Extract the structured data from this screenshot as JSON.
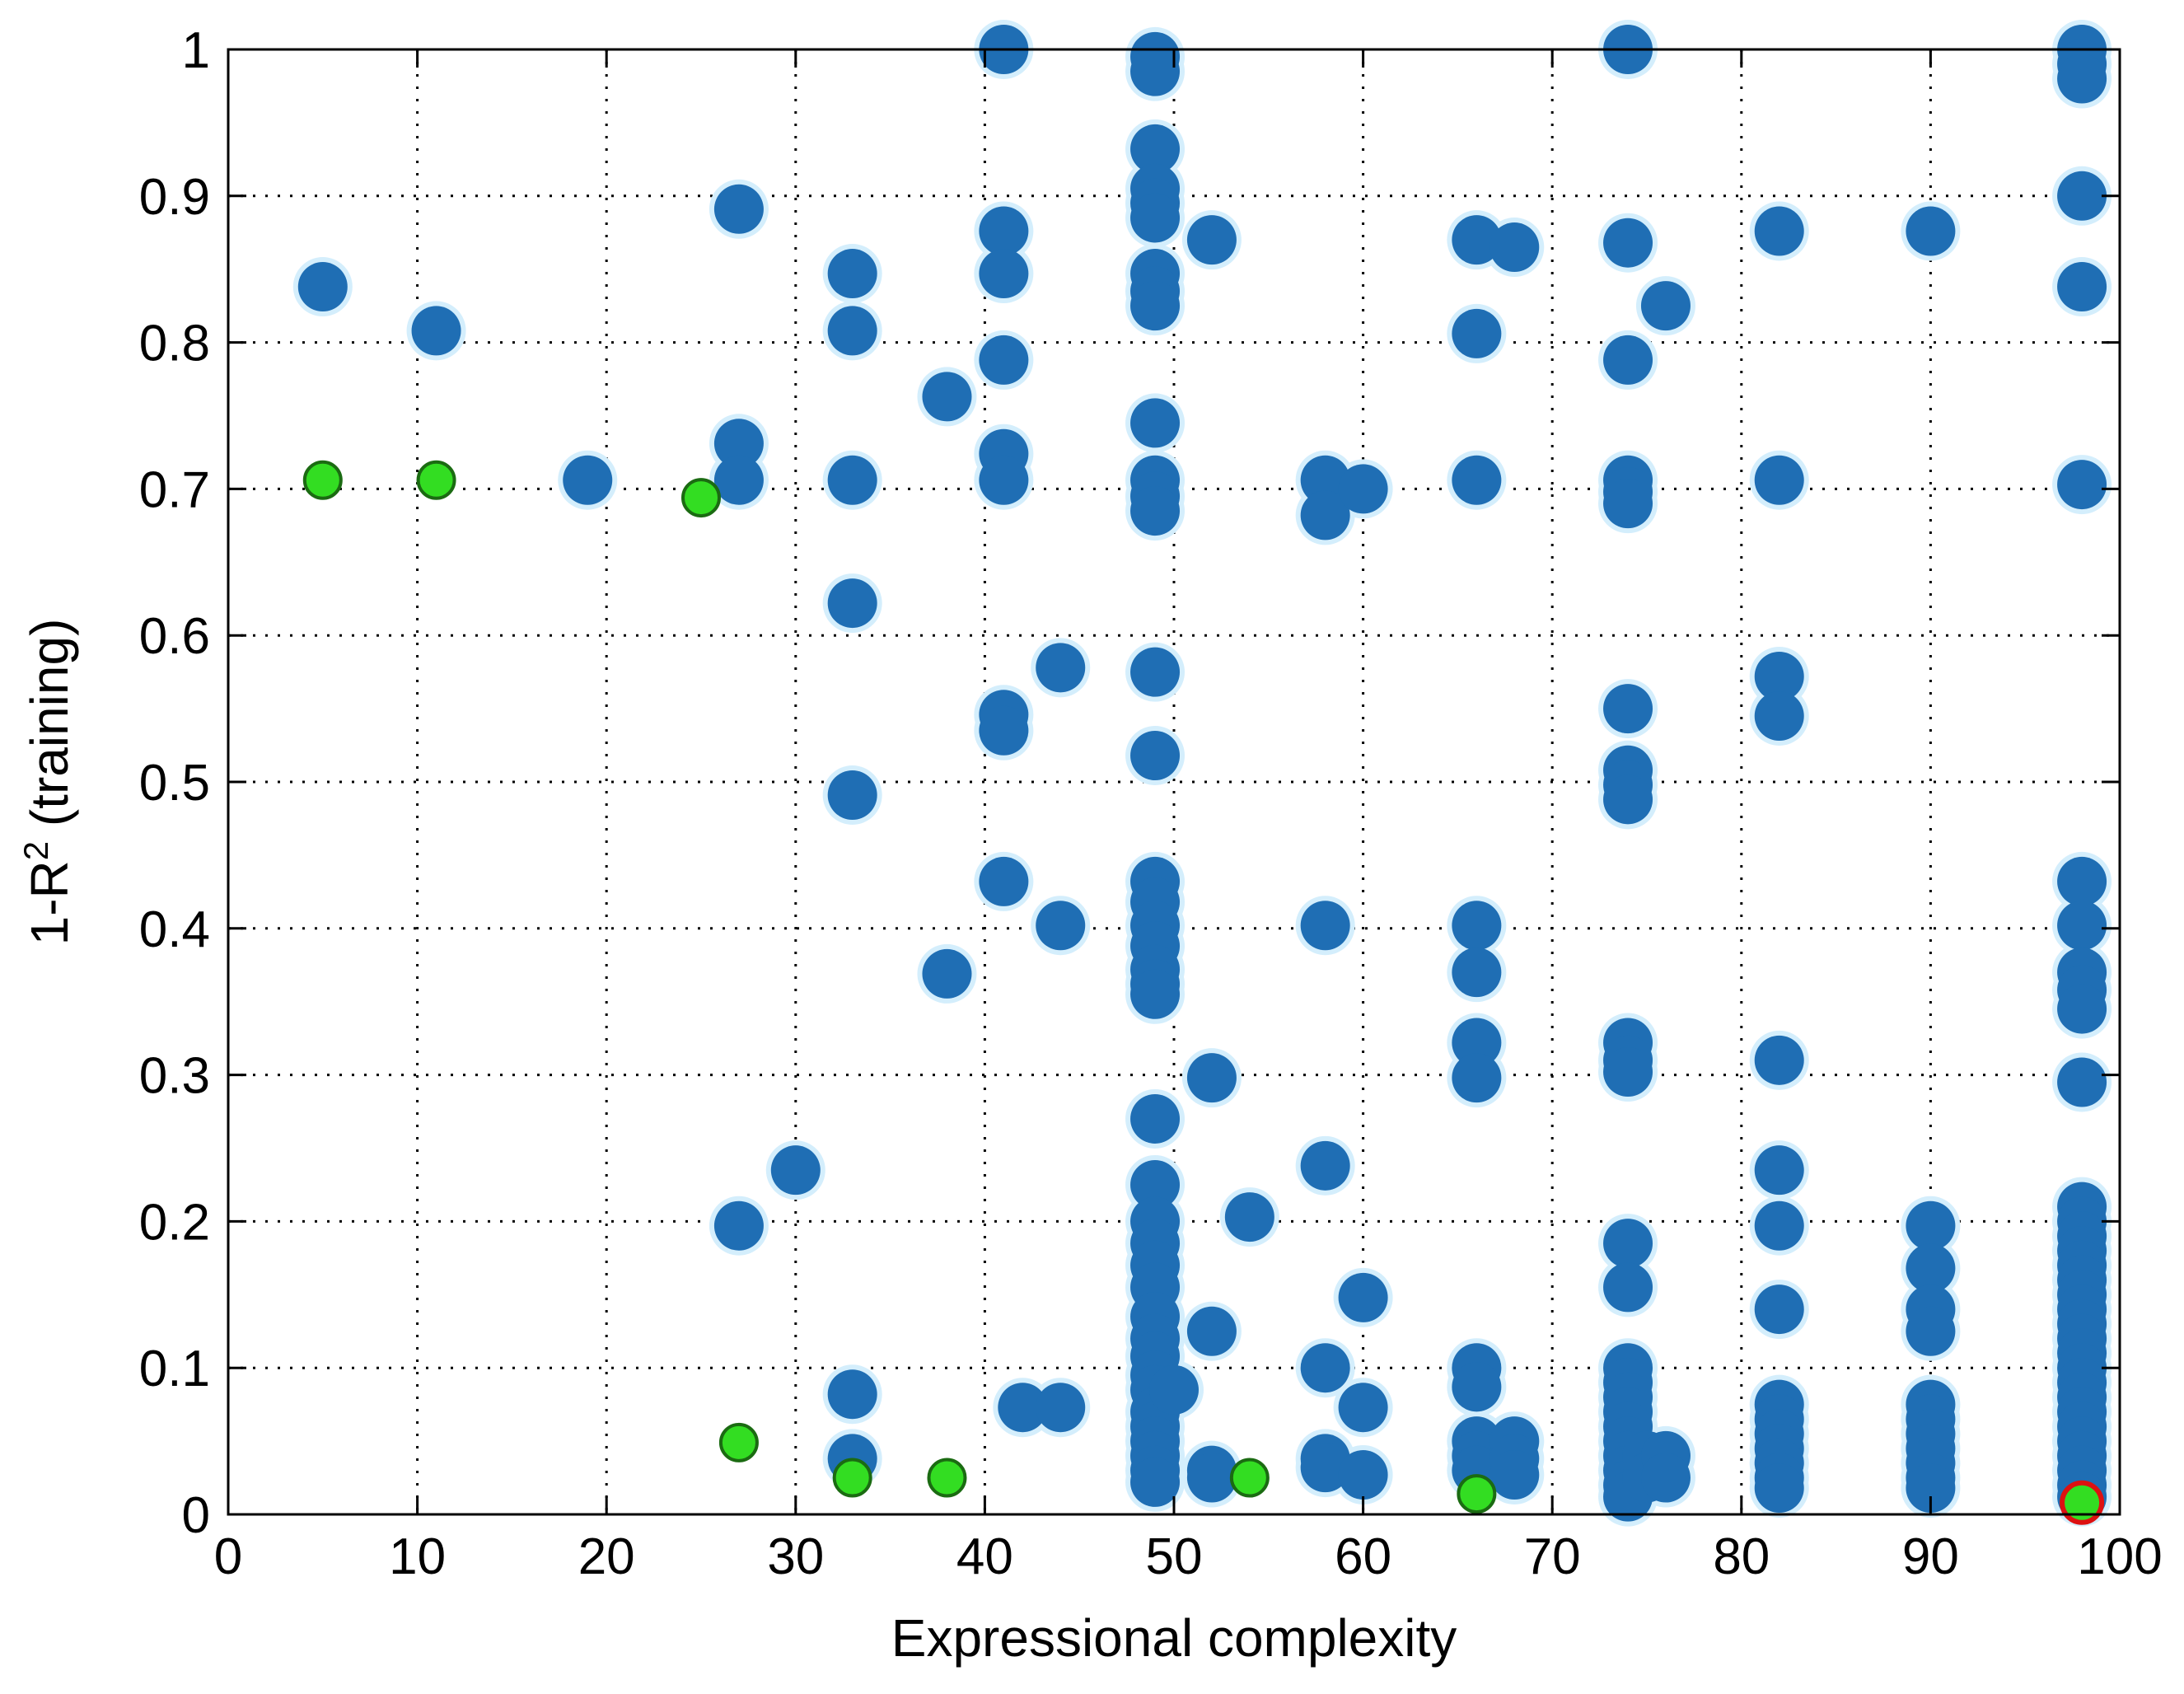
{
  "chart_data": {
    "type": "scatter",
    "title": "",
    "xlabel": "Expressional complexity",
    "ylabel": "1-R",
    "ylabel_superscript": "2",
    "ylabel_suffix": " (training)",
    "xlim": [
      0,
      100
    ],
    "ylim": [
      0,
      1
    ],
    "xticks": [
      "0",
      "10",
      "20",
      "30",
      "40",
      "50",
      "60",
      "70",
      "80",
      "90",
      "100"
    ],
    "yticks": [
      "0",
      "0.1",
      "0.2",
      "0.3",
      "0.4",
      "0.5",
      "0.6",
      "0.7",
      "0.8",
      "0.9",
      "1"
    ],
    "grid": true,
    "grid_style": "dotted",
    "colors": {
      "models": "#1f6eb4",
      "pareto": "#33dd22",
      "pareto_edge": "#1b6b12",
      "selected_edge": "#dd1111"
    },
    "series": [
      {
        "points": [
          [
            5,
            0.838
          ],
          [
            11,
            0.808
          ],
          [
            19,
            0.706
          ],
          [
            27,
            0.891
          ],
          [
            27,
            0.731
          ],
          [
            27,
            0.706
          ],
          [
            27,
            0.197
          ],
          [
            30,
            0.235
          ],
          [
            33,
            0.847
          ],
          [
            33,
            0.808
          ],
          [
            33,
            0.706
          ],
          [
            33,
            0.622
          ],
          [
            33,
            0.491
          ],
          [
            33,
            0.082
          ],
          [
            33,
            0.038
          ],
          [
            38,
            0.763
          ],
          [
            38,
            0.369
          ],
          [
            41,
            1.0
          ],
          [
            41,
            0.876
          ],
          [
            41,
            0.847
          ],
          [
            41,
            0.788
          ],
          [
            41,
            0.724
          ],
          [
            41,
            0.706
          ],
          [
            41,
            0.546
          ],
          [
            41,
            0.535
          ],
          [
            41,
            0.432
          ],
          [
            42,
            0.073
          ],
          [
            44,
            0.578
          ],
          [
            44,
            0.402
          ],
          [
            44,
            0.073
          ],
          [
            49,
            0.995
          ],
          [
            49,
            0.985
          ],
          [
            49,
            0.932
          ],
          [
            49,
            0.905
          ],
          [
            49,
            0.895
          ],
          [
            49,
            0.885
          ],
          [
            49,
            0.847
          ],
          [
            49,
            0.835
          ],
          [
            49,
            0.825
          ],
          [
            49,
            0.745
          ],
          [
            49,
            0.706
          ],
          [
            49,
            0.695
          ],
          [
            49,
            0.685
          ],
          [
            49,
            0.575
          ],
          [
            49,
            0.518
          ],
          [
            49,
            0.432
          ],
          [
            49,
            0.418
          ],
          [
            49,
            0.402
          ],
          [
            49,
            0.388
          ],
          [
            49,
            0.372
          ],
          [
            49,
            0.362
          ],
          [
            49,
            0.355
          ],
          [
            49,
            0.27
          ],
          [
            49,
            0.225
          ],
          [
            49,
            0.2
          ],
          [
            49,
            0.185
          ],
          [
            49,
            0.17
          ],
          [
            49,
            0.155
          ],
          [
            49,
            0.135
          ],
          [
            49,
            0.12
          ],
          [
            49,
            0.108
          ],
          [
            49,
            0.095
          ],
          [
            49,
            0.085
          ],
          [
            49,
            0.07
          ],
          [
            49,
            0.06
          ],
          [
            49,
            0.05
          ],
          [
            49,
            0.04
          ],
          [
            49,
            0.03
          ],
          [
            49,
            0.022
          ],
          [
            50,
            0.085
          ],
          [
            52,
            0.87
          ],
          [
            52,
            0.298
          ],
          [
            52,
            0.125
          ],
          [
            52,
            0.03
          ],
          [
            52,
            0.025
          ],
          [
            54,
            0.203
          ],
          [
            58,
            0.706
          ],
          [
            58,
            0.682
          ],
          [
            58,
            0.402
          ],
          [
            58,
            0.238
          ],
          [
            58,
            0.1
          ],
          [
            58,
            0.038
          ],
          [
            58,
            0.032
          ],
          [
            60,
            0.7
          ],
          [
            60,
            0.148
          ],
          [
            60,
            0.073
          ],
          [
            60,
            0.027
          ],
          [
            66,
            0.87
          ],
          [
            66,
            0.806
          ],
          [
            66,
            0.706
          ],
          [
            66,
            0.402
          ],
          [
            66,
            0.37
          ],
          [
            66,
            0.322
          ],
          [
            66,
            0.298
          ],
          [
            66,
            0.1
          ],
          [
            66,
            0.087
          ],
          [
            66,
            0.05
          ],
          [
            66,
            0.04
          ],
          [
            66,
            0.03
          ],
          [
            68,
            0.865
          ],
          [
            68,
            0.05
          ],
          [
            68,
            0.038
          ],
          [
            68,
            0.027
          ],
          [
            74,
            1.0
          ],
          [
            74,
            0.868
          ],
          [
            74,
            0.788
          ],
          [
            74,
            0.706
          ],
          [
            74,
            0.698
          ],
          [
            74,
            0.69
          ],
          [
            74,
            0.55
          ],
          [
            74,
            0.508
          ],
          [
            74,
            0.498
          ],
          [
            74,
            0.488
          ],
          [
            74,
            0.322
          ],
          [
            74,
            0.31
          ],
          [
            74,
            0.302
          ],
          [
            74,
            0.185
          ],
          [
            74,
            0.155
          ],
          [
            74,
            0.1
          ],
          [
            74,
            0.09
          ],
          [
            74,
            0.08
          ],
          [
            74,
            0.07
          ],
          [
            74,
            0.06
          ],
          [
            74,
            0.05
          ],
          [
            74,
            0.04
          ],
          [
            74,
            0.03
          ],
          [
            74,
            0.02
          ],
          [
            74,
            0.012
          ],
          [
            75,
            0.04
          ],
          [
            75,
            0.025
          ],
          [
            76,
            0.825
          ],
          [
            76,
            0.04
          ],
          [
            76,
            0.025
          ],
          [
            82,
            0.876
          ],
          [
            82,
            0.706
          ],
          [
            82,
            0.572
          ],
          [
            82,
            0.545
          ],
          [
            82,
            0.31
          ],
          [
            82,
            0.235
          ],
          [
            82,
            0.197
          ],
          [
            82,
            0.14
          ],
          [
            82,
            0.075
          ],
          [
            82,
            0.065
          ],
          [
            82,
            0.055
          ],
          [
            82,
            0.045
          ],
          [
            82,
            0.035
          ],
          [
            82,
            0.025
          ],
          [
            82,
            0.018
          ],
          [
            90,
            0.876
          ],
          [
            90,
            0.197
          ],
          [
            90,
            0.168
          ],
          [
            90,
            0.14
          ],
          [
            90,
            0.125
          ],
          [
            90,
            0.075
          ],
          [
            90,
            0.065
          ],
          [
            90,
            0.055
          ],
          [
            90,
            0.045
          ],
          [
            90,
            0.035
          ],
          [
            90,
            0.025
          ],
          [
            90,
            0.018
          ],
          [
            98,
            1.0
          ],
          [
            98,
            0.99
          ],
          [
            98,
            0.98
          ],
          [
            98,
            0.9
          ],
          [
            98,
            0.838
          ],
          [
            98,
            0.703
          ],
          [
            98,
            0.432
          ],
          [
            98,
            0.402
          ],
          [
            98,
            0.37
          ],
          [
            98,
            0.358
          ],
          [
            98,
            0.345
          ],
          [
            98,
            0.295
          ],
          [
            98,
            0.21
          ],
          [
            98,
            0.2
          ],
          [
            98,
            0.19
          ],
          [
            98,
            0.18
          ],
          [
            98,
            0.17
          ],
          [
            98,
            0.16
          ],
          [
            98,
            0.15
          ],
          [
            98,
            0.14
          ],
          [
            98,
            0.13
          ],
          [
            98,
            0.12
          ],
          [
            98,
            0.11
          ],
          [
            98,
            0.1
          ],
          [
            98,
            0.09
          ],
          [
            98,
            0.08
          ],
          [
            98,
            0.07
          ],
          [
            98,
            0.06
          ],
          [
            98,
            0.05
          ],
          [
            98,
            0.04
          ],
          [
            98,
            0.03
          ],
          [
            98,
            0.02
          ],
          [
            98,
            0.012
          ]
        ]
      },
      {
        "points": [
          [
            5,
            0.706
          ],
          [
            11,
            0.706
          ],
          [
            25,
            0.694
          ],
          [
            27,
            0.049
          ],
          [
            33,
            0.025
          ],
          [
            38,
            0.025
          ],
          [
            54,
            0.025
          ],
          [
            66,
            0.014
          ]
        ]
      },
      {
        "points": [
          [
            98,
            0.008
          ]
        ]
      }
    ]
  }
}
